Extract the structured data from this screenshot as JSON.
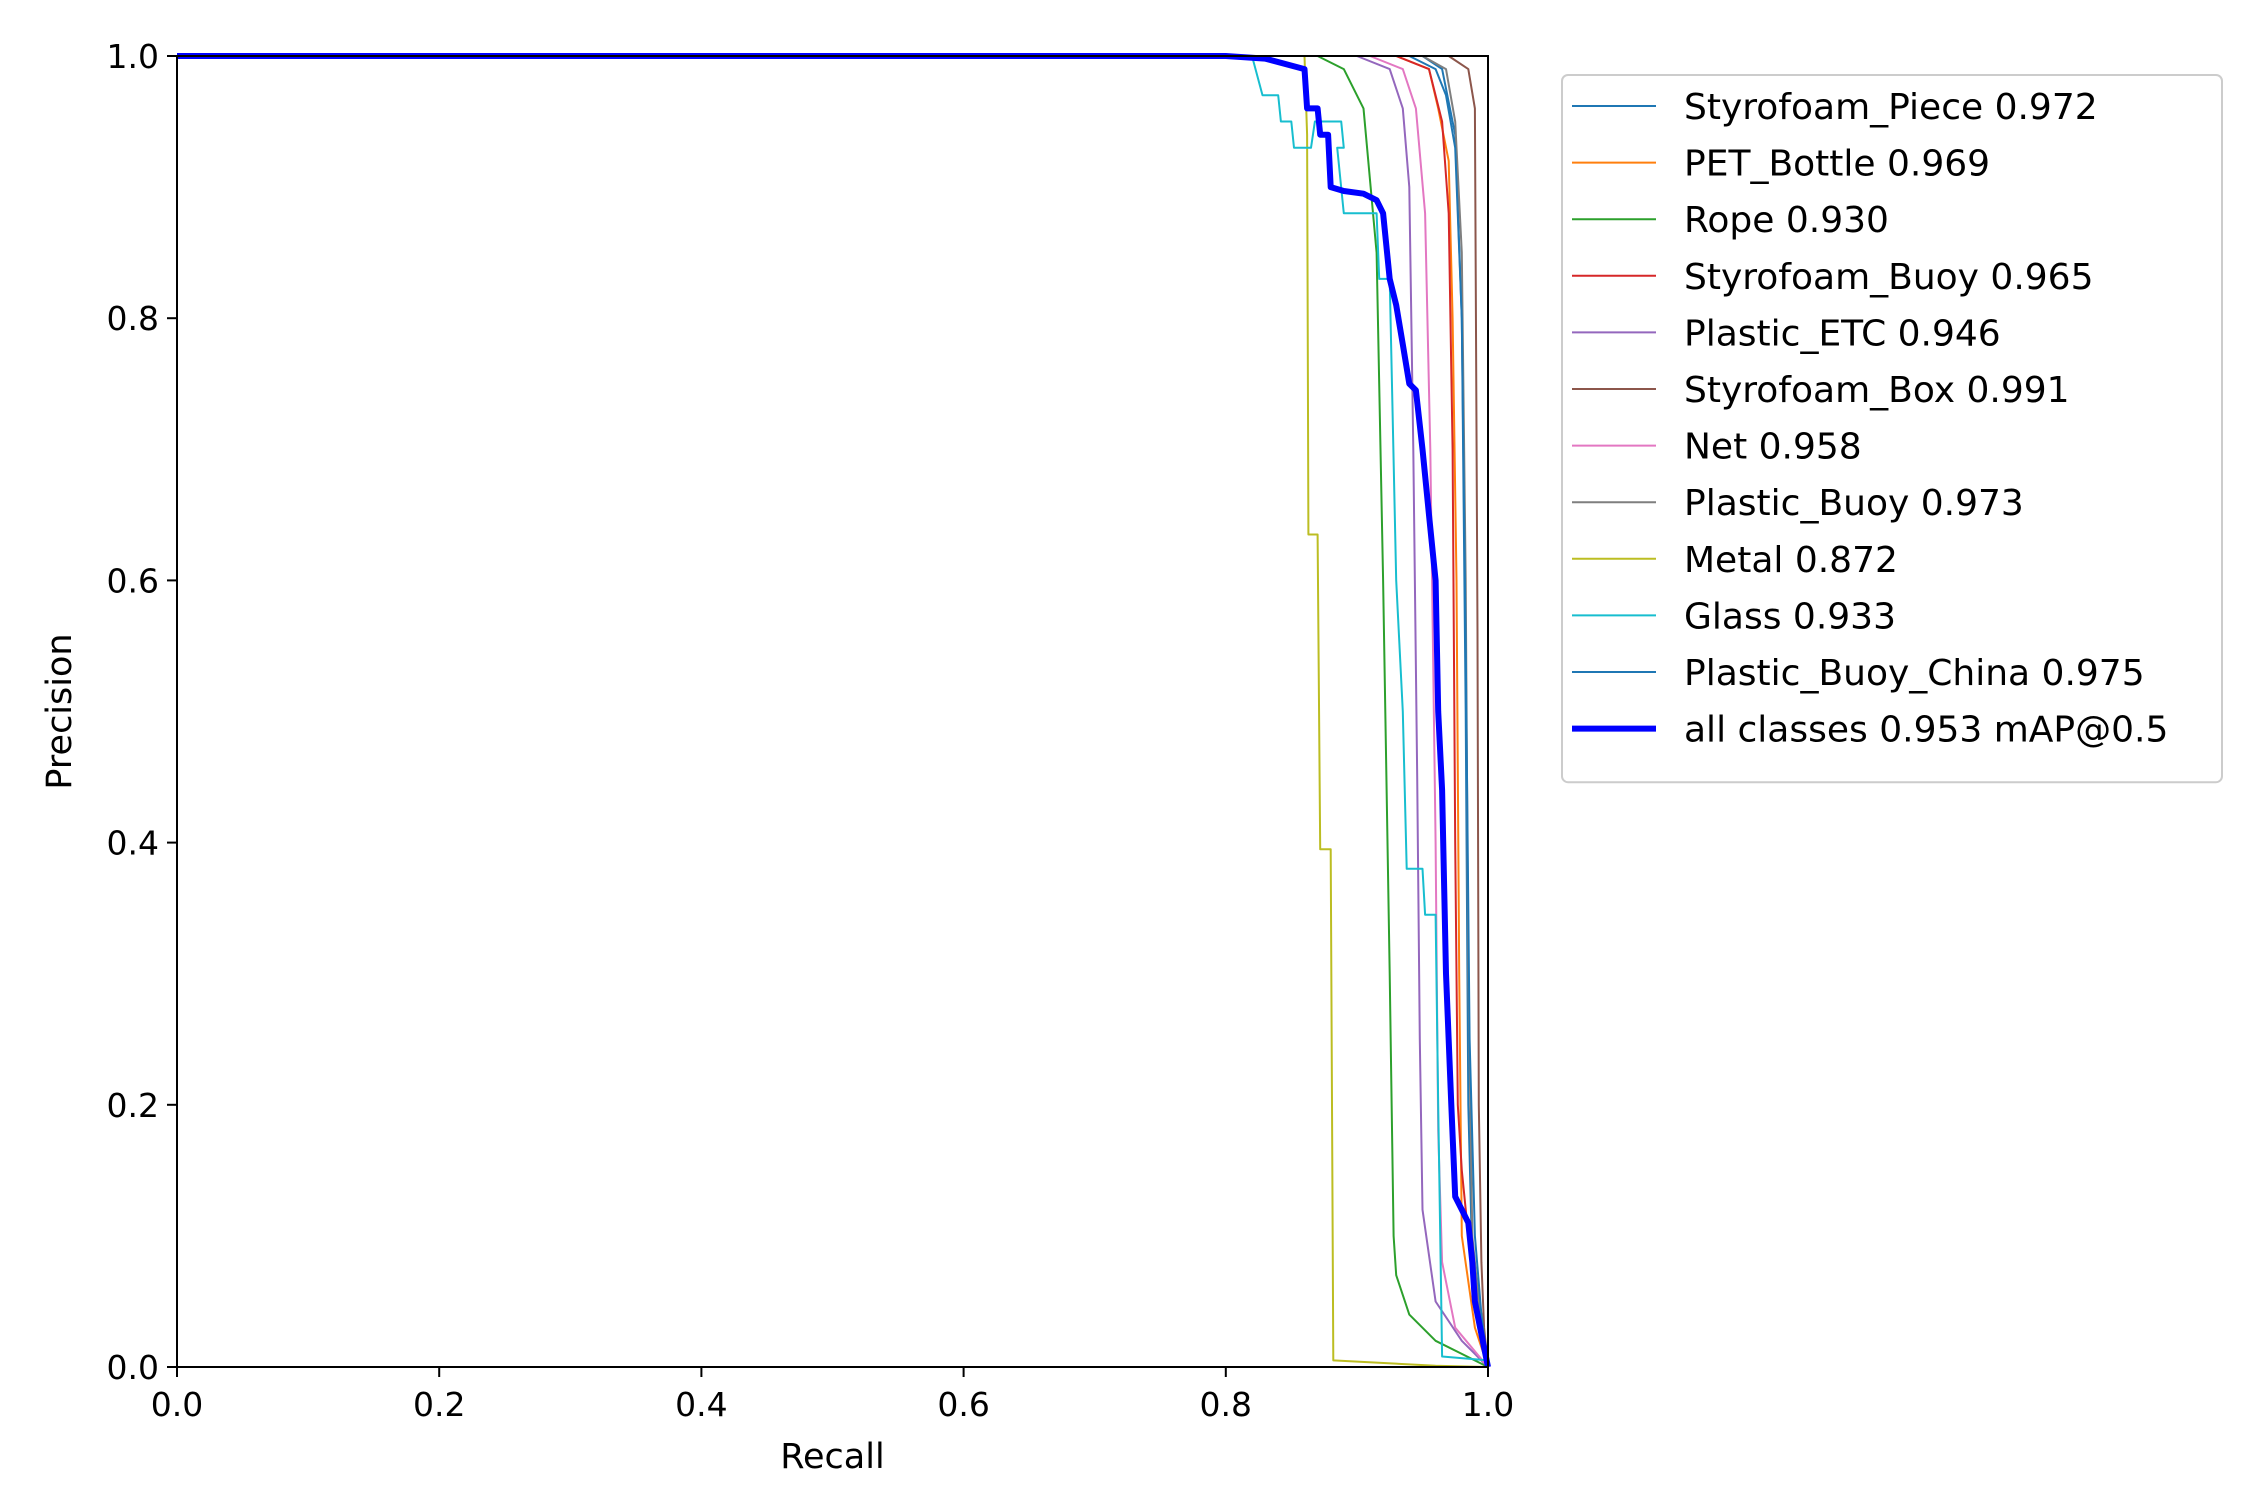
{
  "chart_data": {
    "type": "line",
    "title": "",
    "xlabel": "Recall",
    "ylabel": "Precision",
    "xlim": [
      0,
      1
    ],
    "ylim": [
      0,
      1
    ],
    "grid": false,
    "legend_position": "outside-upper-right",
    "xticks": [
      "0.0",
      "0.2",
      "0.4",
      "0.6",
      "0.8",
      "1.0"
    ],
    "yticks": [
      "0.0",
      "0.2",
      "0.4",
      "0.6",
      "0.8",
      "1.0"
    ],
    "series": [
      {
        "label": "Styrofoam_Piece 0.972",
        "color": "#1f77b4",
        "width": 2,
        "points": [
          [
            0,
            1
          ],
          [
            0.95,
            1
          ],
          [
            0.965,
            0.99
          ],
          [
            0.975,
            0.94
          ],
          [
            0.98,
            0.8
          ],
          [
            0.983,
            0.5
          ],
          [
            0.985,
            0.2
          ],
          [
            0.988,
            0.08
          ],
          [
            0.995,
            0.04
          ],
          [
            1,
            0
          ]
        ]
      },
      {
        "label": "PET_Bottle 0.969",
        "color": "#ff7f0e",
        "width": 2,
        "points": [
          [
            0,
            1
          ],
          [
            0.93,
            1
          ],
          [
            0.955,
            0.99
          ],
          [
            0.962,
            0.96
          ],
          [
            0.97,
            0.92
          ],
          [
            0.973,
            0.8
          ],
          [
            0.976,
            0.6
          ],
          [
            0.978,
            0.3
          ],
          [
            0.98,
            0.1
          ],
          [
            0.99,
            0.03
          ],
          [
            1,
            0
          ]
        ]
      },
      {
        "label": "Rope 0.930",
        "color": "#2ca02c",
        "width": 2,
        "points": [
          [
            0,
            1
          ],
          [
            0.87,
            1
          ],
          [
            0.89,
            0.99
          ],
          [
            0.905,
            0.96
          ],
          [
            0.915,
            0.85
          ],
          [
            0.92,
            0.6
          ],
          [
            0.925,
            0.3
          ],
          [
            0.928,
            0.1
          ],
          [
            0.93,
            0.07
          ],
          [
            0.94,
            0.04
          ],
          [
            0.96,
            0.02
          ],
          [
            0.98,
            0.01
          ],
          [
            1,
            0
          ]
        ]
      },
      {
        "label": "Styrofoam_Buoy 0.965",
        "color": "#d62728",
        "width": 2,
        "points": [
          [
            0,
            1
          ],
          [
            0.93,
            1
          ],
          [
            0.955,
            0.99
          ],
          [
            0.965,
            0.95
          ],
          [
            0.97,
            0.88
          ],
          [
            0.973,
            0.7
          ],
          [
            0.975,
            0.4
          ],
          [
            0.977,
            0.2
          ],
          [
            0.98,
            0.15
          ],
          [
            0.99,
            0.05
          ],
          [
            1,
            0
          ]
        ]
      },
      {
        "label": "Plastic_ETC 0.946",
        "color": "#9467bd",
        "width": 2,
        "points": [
          [
            0,
            1
          ],
          [
            0.9,
            1
          ],
          [
            0.925,
            0.99
          ],
          [
            0.935,
            0.96
          ],
          [
            0.94,
            0.9
          ],
          [
            0.943,
            0.7
          ],
          [
            0.946,
            0.45
          ],
          [
            0.948,
            0.25
          ],
          [
            0.95,
            0.12
          ],
          [
            0.96,
            0.05
          ],
          [
            0.98,
            0.02
          ],
          [
            1,
            0
          ]
        ]
      },
      {
        "label": "Styrofoam_Box 0.991",
        "color": "#8c564b",
        "width": 2,
        "points": [
          [
            0,
            1
          ],
          [
            0.97,
            1
          ],
          [
            0.985,
            0.99
          ],
          [
            0.99,
            0.96
          ],
          [
            0.992,
            0.56
          ],
          [
            0.993,
            0.2
          ],
          [
            0.995,
            0.08
          ],
          [
            0.997,
            0.03
          ],
          [
            1,
            0
          ]
        ]
      },
      {
        "label": "Net 0.958",
        "color": "#e377c2",
        "width": 2,
        "points": [
          [
            0,
            1
          ],
          [
            0.91,
            1
          ],
          [
            0.935,
            0.99
          ],
          [
            0.945,
            0.96
          ],
          [
            0.952,
            0.88
          ],
          [
            0.956,
            0.7
          ],
          [
            0.96,
            0.4
          ],
          [
            0.962,
            0.18
          ],
          [
            0.965,
            0.08
          ],
          [
            0.975,
            0.03
          ],
          [
            1,
            0
          ]
        ]
      },
      {
        "label": "Plastic_Buoy 0.973",
        "color": "#7f7f7f",
        "width": 2,
        "points": [
          [
            0,
            1
          ],
          [
            0.95,
            1
          ],
          [
            0.968,
            0.99
          ],
          [
            0.975,
            0.95
          ],
          [
            0.98,
            0.85
          ],
          [
            0.983,
            0.6
          ],
          [
            0.985,
            0.3
          ],
          [
            0.988,
            0.1
          ],
          [
            0.995,
            0.03
          ],
          [
            1,
            0
          ]
        ]
      },
      {
        "label": "Metal 0.872",
        "color": "#bcbd22",
        "width": 2,
        "points": [
          [
            0,
            1
          ],
          [
            0.86,
            1
          ],
          [
            0.862,
            0.94
          ],
          [
            0.863,
            0.635
          ],
          [
            0.87,
            0.635
          ],
          [
            0.872,
            0.395
          ],
          [
            0.88,
            0.395
          ],
          [
            0.882,
            0.005
          ],
          [
            0.96,
            0.001
          ],
          [
            1,
            0
          ]
        ]
      },
      {
        "label": "Glass 0.933",
        "color": "#17becf",
        "width": 2,
        "points": [
          [
            0,
            1
          ],
          [
            0.82,
            1
          ],
          [
            0.828,
            0.97
          ],
          [
            0.84,
            0.97
          ],
          [
            0.842,
            0.95
          ],
          [
            0.85,
            0.95
          ],
          [
            0.852,
            0.93
          ],
          [
            0.865,
            0.93
          ],
          [
            0.868,
            0.95
          ],
          [
            0.888,
            0.95
          ],
          [
            0.89,
            0.93
          ],
          [
            0.885,
            0.93
          ],
          [
            0.89,
            0.88
          ],
          [
            0.915,
            0.88
          ],
          [
            0.917,
            0.83
          ],
          [
            0.925,
            0.83
          ],
          [
            0.93,
            0.6
          ],
          [
            0.935,
            0.5
          ],
          [
            0.938,
            0.38
          ],
          [
            0.95,
            0.38
          ],
          [
            0.952,
            0.345
          ],
          [
            0.96,
            0.345
          ],
          [
            0.962,
            0.2
          ],
          [
            0.965,
            0.008
          ],
          [
            1,
            0.005
          ]
        ]
      },
      {
        "label": "Plastic_Buoy_China 0.975",
        "color": "#1f77b4",
        "width": 2,
        "points": [
          [
            0,
            1
          ],
          [
            0.94,
            1
          ],
          [
            0.96,
            0.99
          ],
          [
            0.968,
            0.97
          ],
          [
            0.975,
            0.93
          ],
          [
            0.98,
            0.8
          ],
          [
            0.983,
            0.55
          ],
          [
            0.986,
            0.25
          ],
          [
            0.99,
            0.1
          ],
          [
            0.995,
            0.04
          ],
          [
            1,
            0
          ]
        ]
      },
      {
        "label": "all classes 0.953 mAP@0.5",
        "color": "#0000ff",
        "width": 6,
        "points": [
          [
            0,
            1
          ],
          [
            0.8,
            1
          ],
          [
            0.83,
            0.998
          ],
          [
            0.86,
            0.99
          ],
          [
            0.862,
            0.96
          ],
          [
            0.87,
            0.96
          ],
          [
            0.872,
            0.94
          ],
          [
            0.878,
            0.94
          ],
          [
            0.88,
            0.9
          ],
          [
            0.89,
            0.897
          ],
          [
            0.905,
            0.895
          ],
          [
            0.915,
            0.89
          ],
          [
            0.92,
            0.88
          ],
          [
            0.925,
            0.83
          ],
          [
            0.93,
            0.81
          ],
          [
            0.935,
            0.78
          ],
          [
            0.94,
            0.75
          ],
          [
            0.945,
            0.745
          ],
          [
            0.95,
            0.7
          ],
          [
            0.955,
            0.65
          ],
          [
            0.96,
            0.6
          ],
          [
            0.962,
            0.5
          ],
          [
            0.965,
            0.44
          ],
          [
            0.968,
            0.3
          ],
          [
            0.972,
            0.2
          ],
          [
            0.975,
            0.13
          ],
          [
            0.98,
            0.12
          ],
          [
            0.985,
            0.11
          ],
          [
            0.988,
            0.08
          ],
          [
            0.99,
            0.05
          ],
          [
            1,
            0
          ]
        ]
      }
    ]
  }
}
